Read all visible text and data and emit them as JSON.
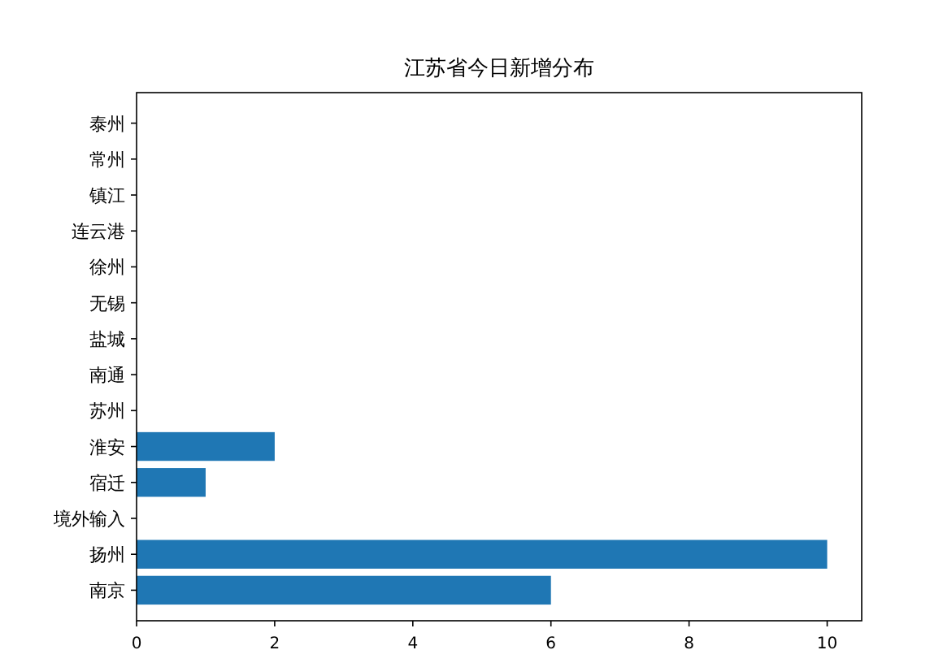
{
  "chart_data": {
    "type": "bar",
    "orientation": "horizontal",
    "title": "江苏省今日新增分布",
    "categories": [
      "泰州",
      "常州",
      "镇江",
      "连云港",
      "徐州",
      "无锡",
      "盐城",
      "南通",
      "苏州",
      "淮安",
      "宿迁",
      "境外输入",
      "扬州",
      "南京"
    ],
    "values": [
      0,
      0,
      0,
      0,
      0,
      0,
      0,
      0,
      0,
      2,
      1,
      0,
      10,
      6
    ],
    "color": "#1f77b4",
    "xlim": [
      0,
      10.5
    ],
    "xticks": [
      0,
      2,
      4,
      6,
      8,
      10
    ],
    "grid": false
  }
}
